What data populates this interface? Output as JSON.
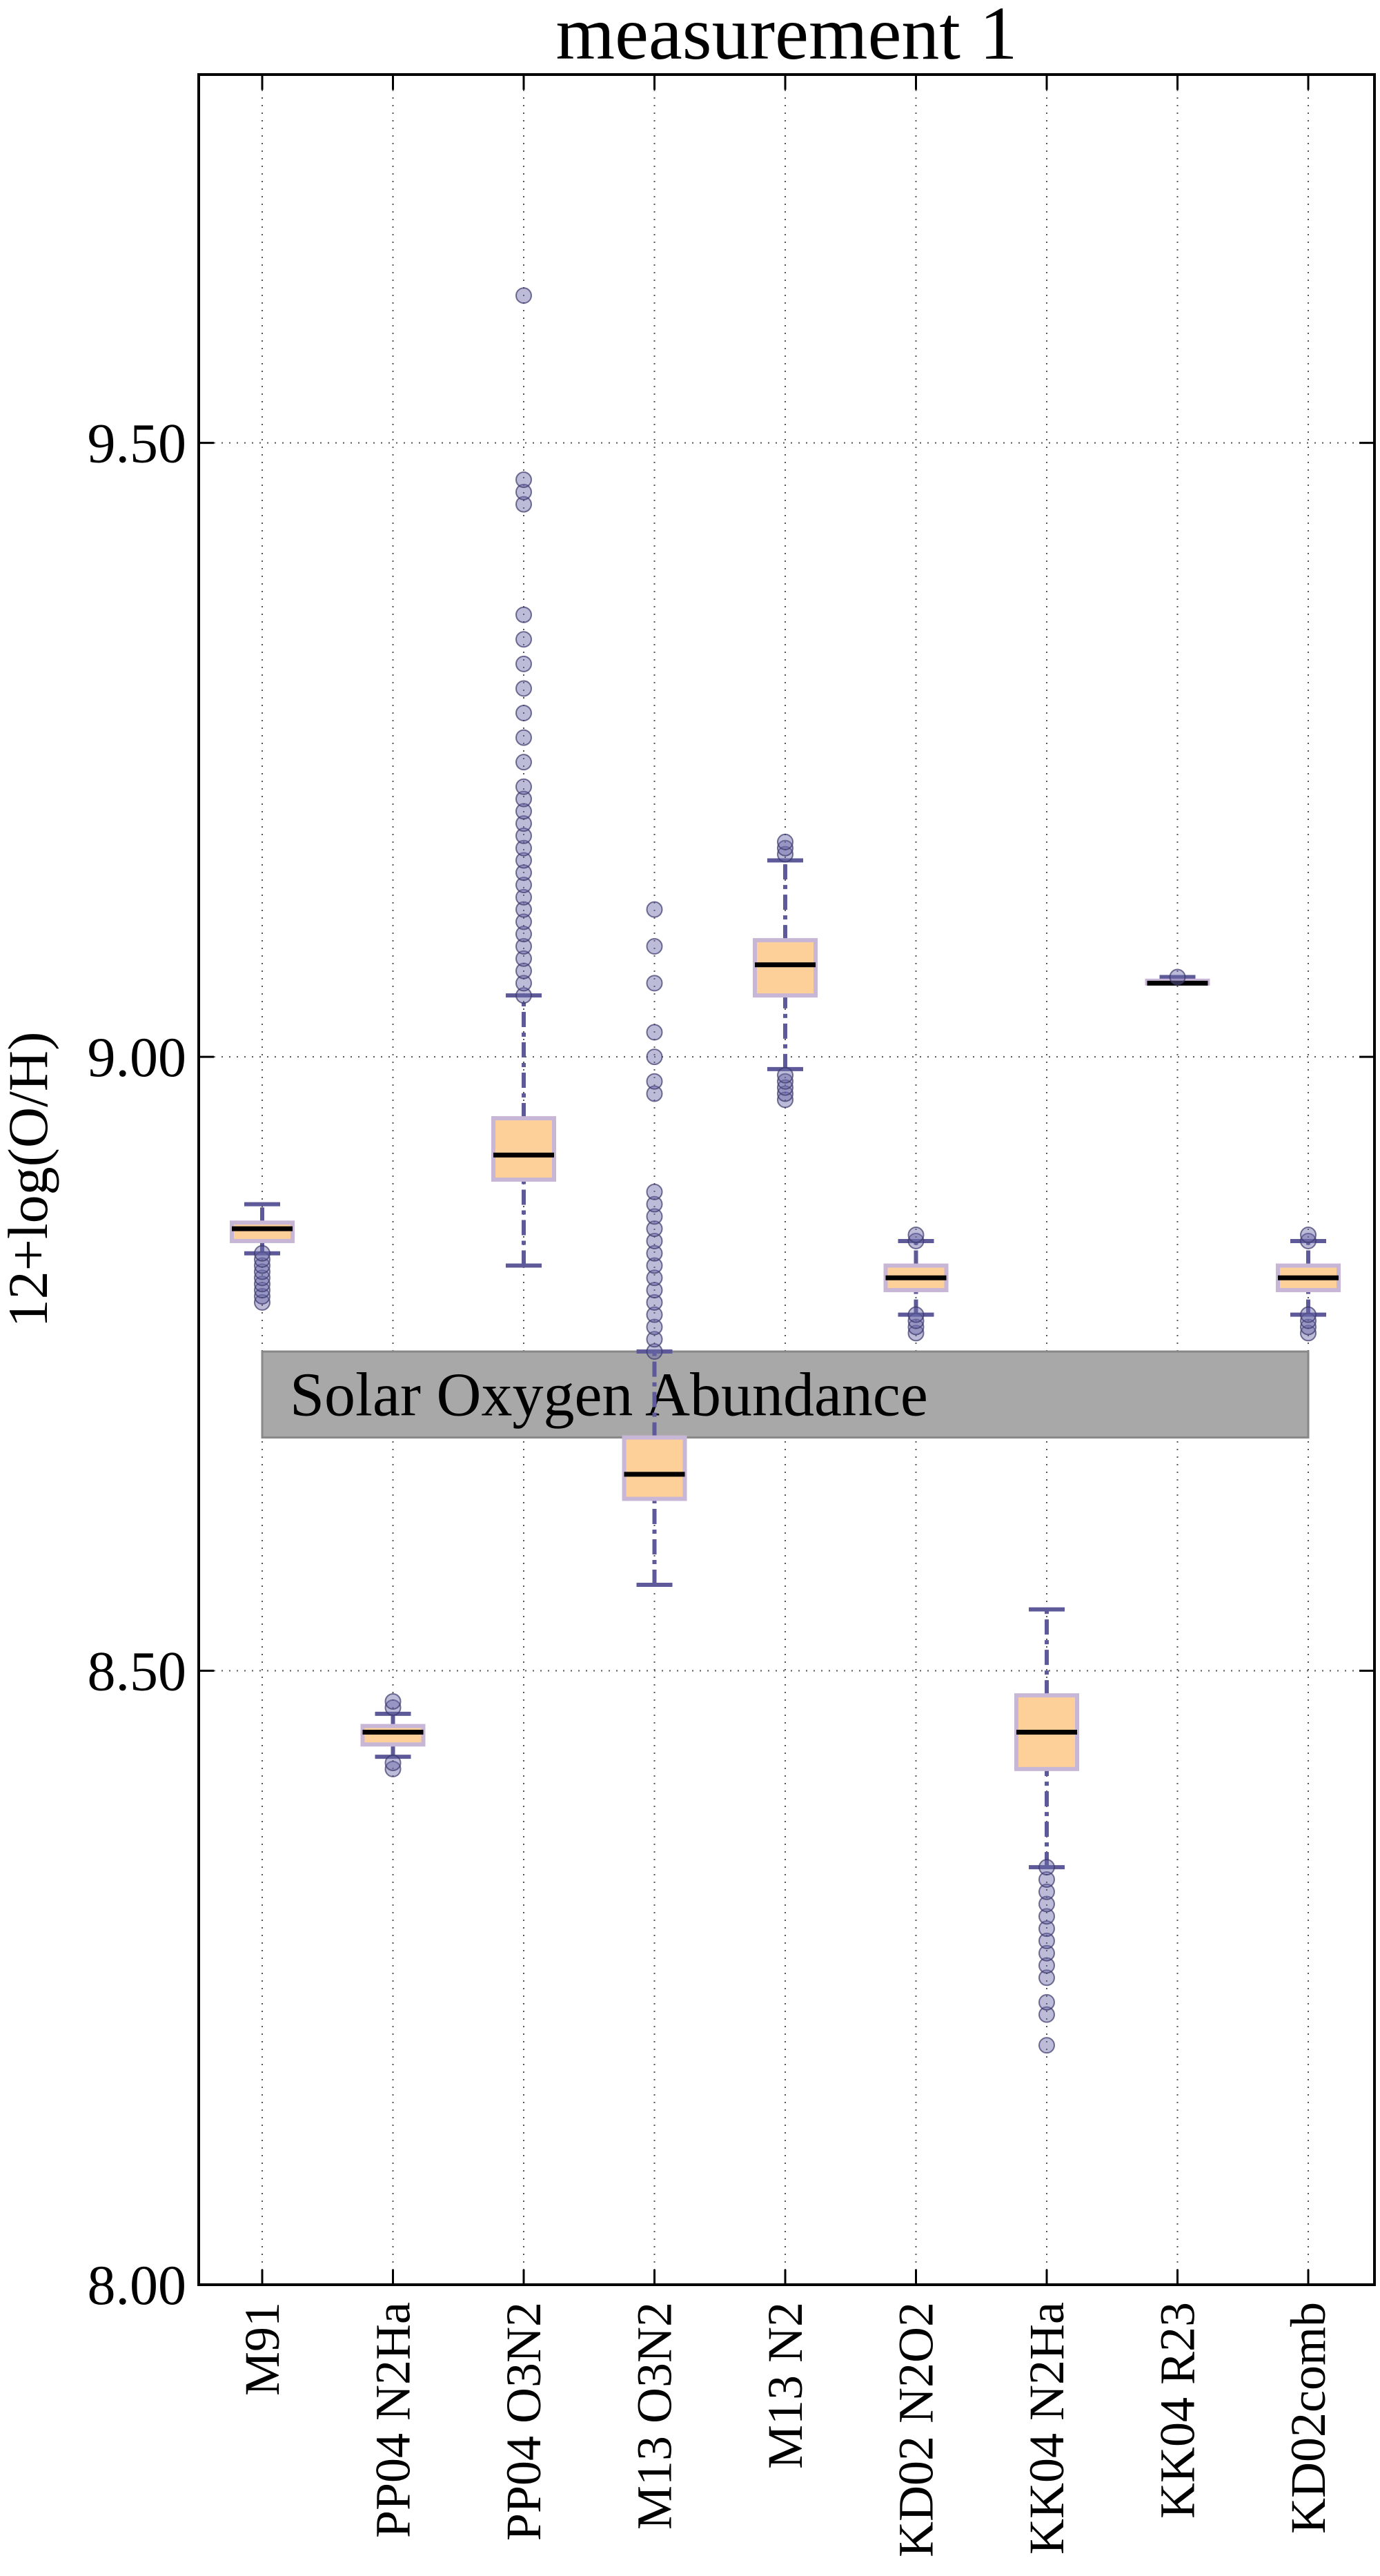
{
  "chart_data": {
    "type": "box",
    "title": "measurement 1",
    "xlabel": "",
    "ylabel": "12+log(O/H)",
    "ylim": [
      8.0,
      9.8
    ],
    "yticks": [
      8.0,
      8.5,
      9.0,
      9.5
    ],
    "ytick_labels": [
      "8.00",
      "8.50",
      "9.00",
      "9.50"
    ],
    "grid": true,
    "categories": [
      "M91",
      "PP04 N2Ha",
      "PP04 O3N2",
      "M13 O3N2",
      "M13 N2",
      "KD02 N2O2",
      "KK04 N2Ha",
      "KK04 R23",
      "KD02comb"
    ],
    "boxes": [
      {
        "label": "M91",
        "whisker_low": 8.84,
        "q1": 8.85,
        "median": 8.86,
        "q3": 8.865,
        "whisker_high": 8.88,
        "outliers": [
          8.8,
          8.805,
          8.81,
          8.815,
          8.82,
          8.825,
          8.83,
          8.835,
          8.84
        ]
      },
      {
        "label": "PP04 N2Ha",
        "whisker_low": 8.43,
        "q1": 8.44,
        "median": 8.45,
        "q3": 8.455,
        "whisker_high": 8.465,
        "outliers": [
          8.42,
          8.425,
          8.47,
          8.475
        ]
      },
      {
        "label": "PP04 O3N2",
        "whisker_low": 8.83,
        "q1": 8.9,
        "median": 8.92,
        "q3": 8.95,
        "whisker_high": 9.05,
        "outliers": [
          9.05,
          9.06,
          9.07,
          9.08,
          9.09,
          9.1,
          9.11,
          9.12,
          9.13,
          9.14,
          9.15,
          9.16,
          9.17,
          9.18,
          9.19,
          9.2,
          9.21,
          9.22,
          9.24,
          9.26,
          9.28,
          9.3,
          9.32,
          9.34,
          9.36,
          9.45,
          9.46,
          9.47,
          9.62
        ]
      },
      {
        "label": "M13 O3N2",
        "whisker_low": 8.57,
        "q1": 8.64,
        "median": 8.66,
        "q3": 8.69,
        "whisker_high": 8.76,
        "outliers": [
          8.76,
          8.77,
          8.78,
          8.79,
          8.8,
          8.81,
          8.82,
          8.83,
          8.84,
          8.85,
          8.86,
          8.87,
          8.88,
          8.89,
          8.97,
          8.98,
          9.0,
          9.02,
          9.06,
          9.09,
          9.12
        ]
      },
      {
        "label": "M13 N2",
        "whisker_low": 8.99,
        "q1": 9.05,
        "median": 9.075,
        "q3": 9.095,
        "whisker_high": 9.16,
        "outliers": [
          8.965,
          8.97,
          8.975,
          8.98,
          8.985,
          9.165,
          9.17,
          9.175
        ]
      },
      {
        "label": "KD02 N2O2",
        "whisker_low": 8.79,
        "q1": 8.81,
        "median": 8.82,
        "q3": 8.83,
        "whisker_high": 8.85,
        "outliers": [
          8.775,
          8.78,
          8.785,
          8.79,
          8.85,
          8.855
        ]
      },
      {
        "label": "KK04 N2Ha",
        "whisker_low": 8.34,
        "q1": 8.42,
        "median": 8.45,
        "q3": 8.48,
        "whisker_high": 8.55,
        "outliers": [
          8.195,
          8.22,
          8.23,
          8.25,
          8.26,
          8.27,
          8.28,
          8.29,
          8.3,
          8.31,
          8.32,
          8.33,
          8.34
        ]
      },
      {
        "label": "KK04 R23",
        "whisker_low": 9.06,
        "q1": 9.06,
        "median": 9.06,
        "q3": 9.062,
        "whisker_high": 9.065,
        "outliers": [
          9.065
        ]
      },
      {
        "label": "KD02comb",
        "whisker_low": 8.79,
        "q1": 8.81,
        "median": 8.82,
        "q3": 8.83,
        "whisker_high": 8.85,
        "outliers": [
          8.775,
          8.78,
          8.785,
          8.79,
          8.85,
          8.855
        ]
      }
    ],
    "band": {
      "label": "Solar Oxygen Abundance",
      "ymin": 8.69,
      "ymax": 8.76,
      "color": "#a8a8a8"
    },
    "colors": {
      "box_fill": "#fdd09a",
      "box_edge": "#c8b6d6",
      "whisker": "#5e5a9a",
      "median": "#000000",
      "outlier": "#6a68a8",
      "grid": "#555555"
    }
  }
}
